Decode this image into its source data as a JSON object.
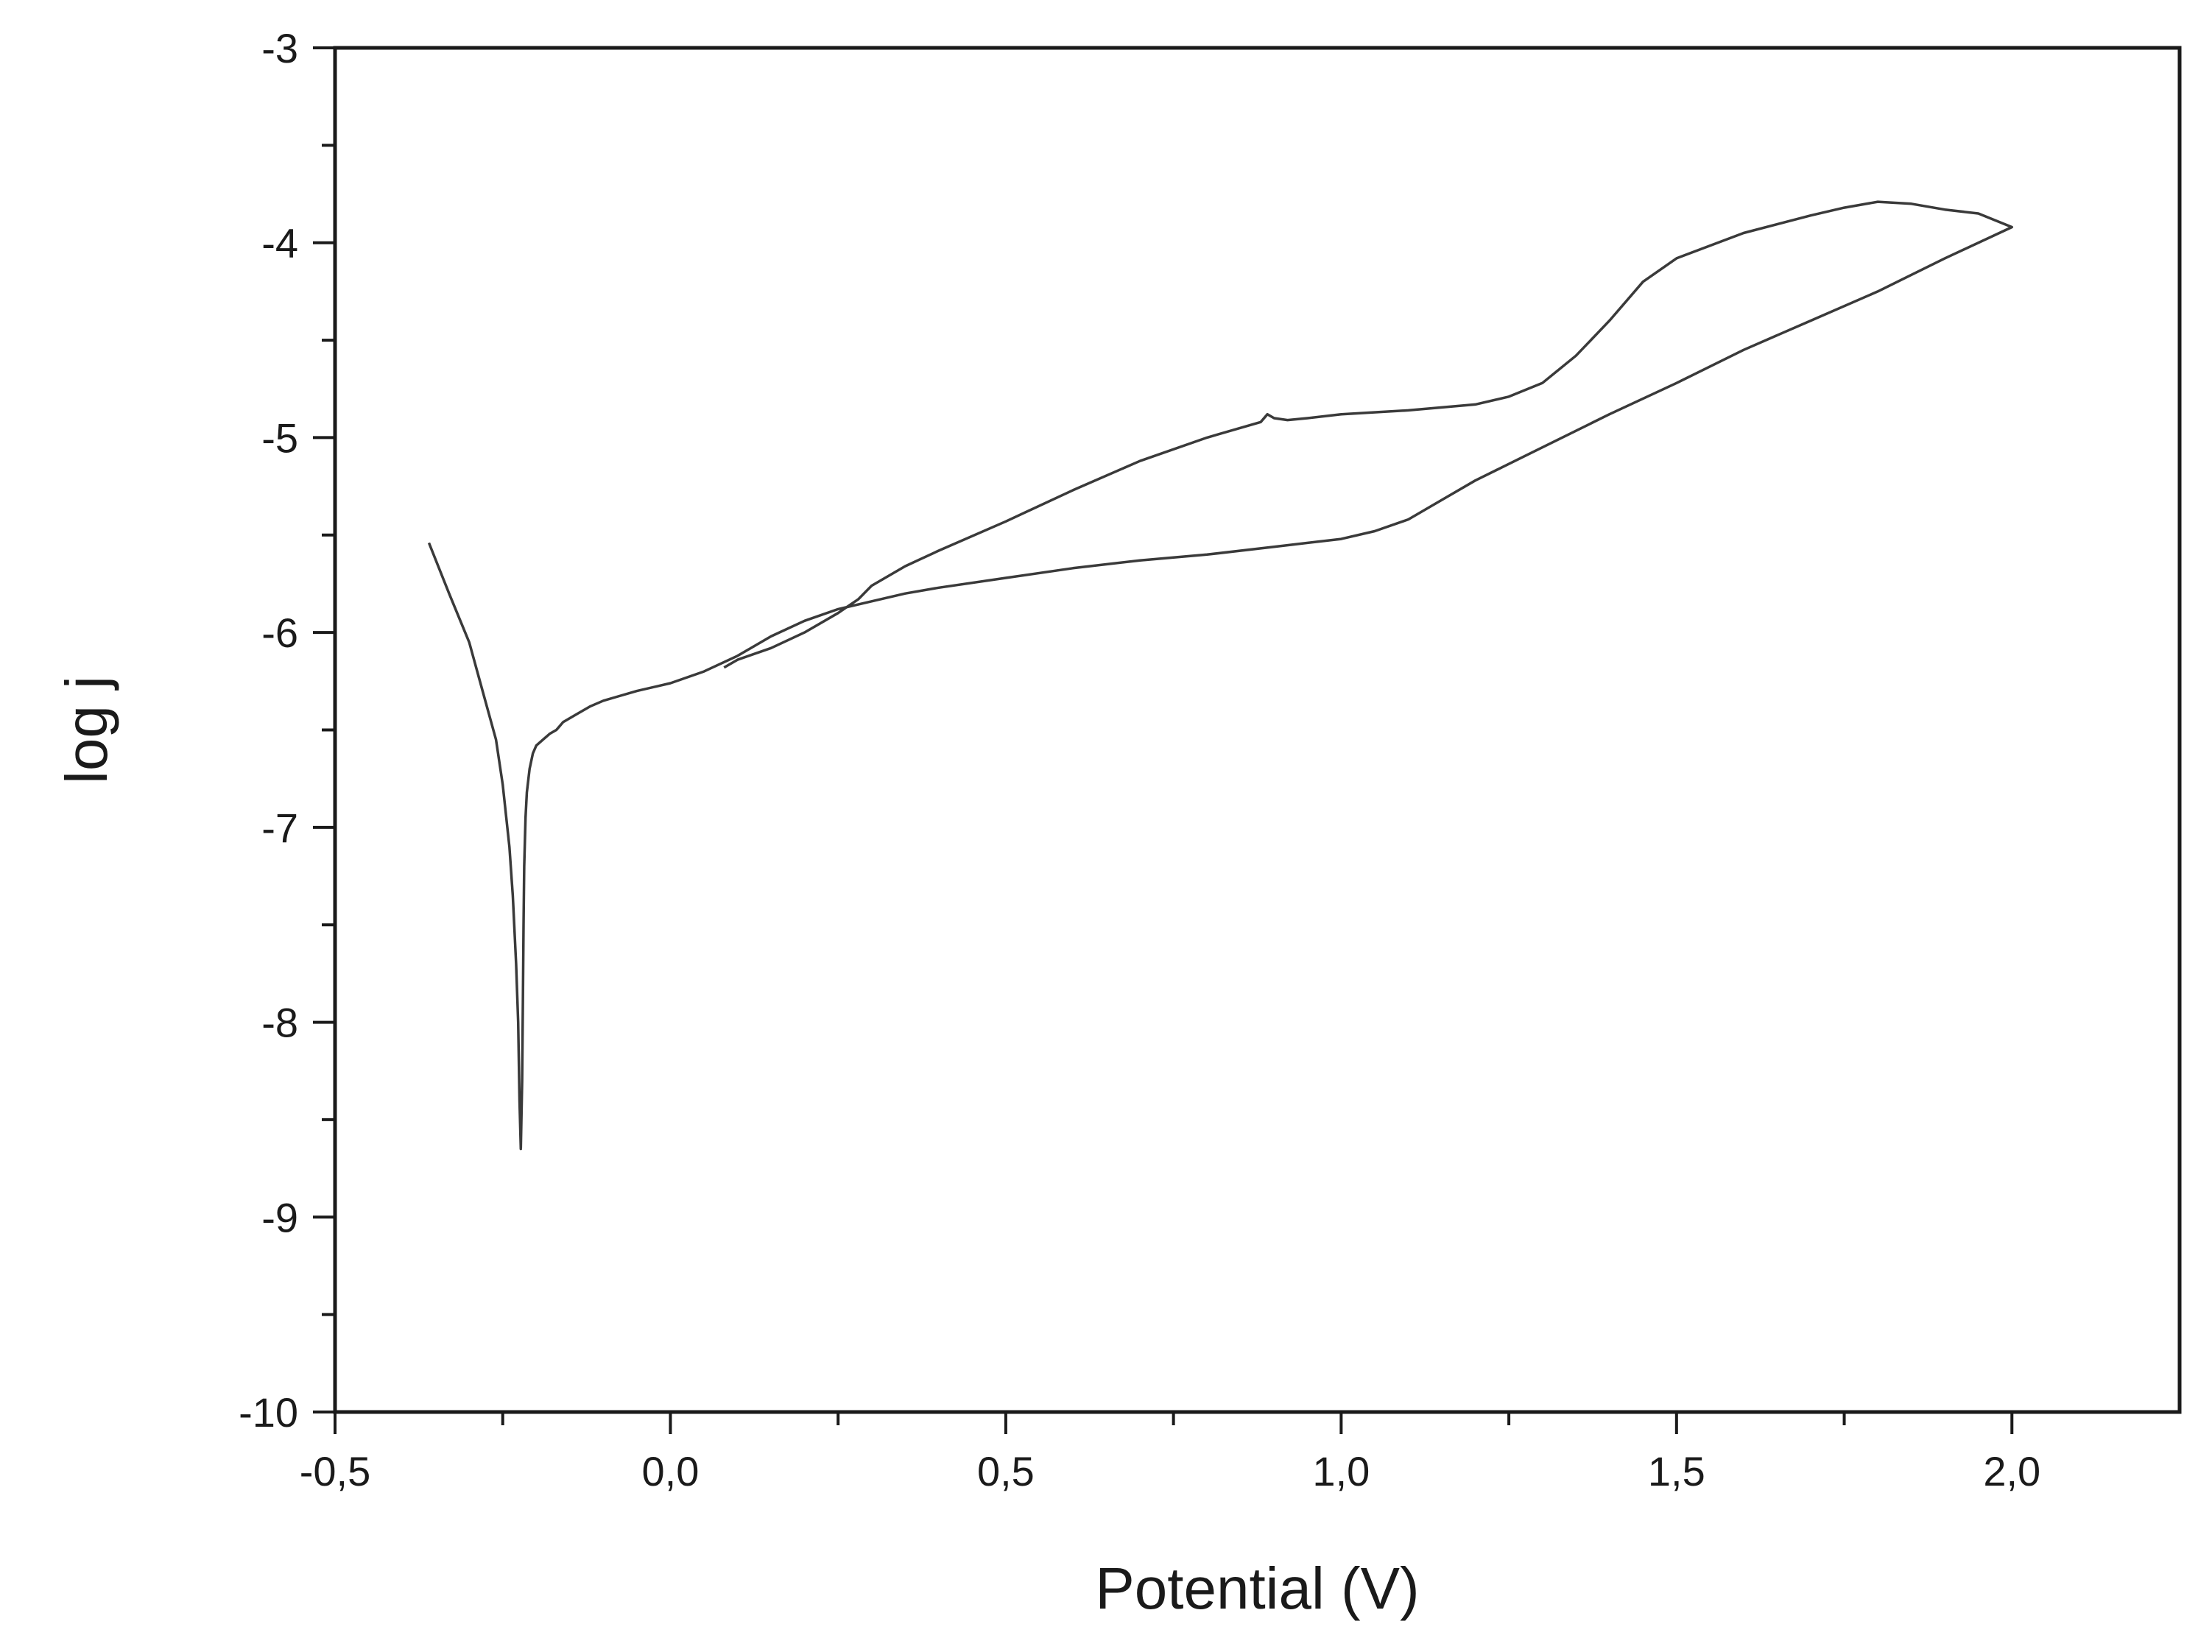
{
  "chart_data": {
    "type": "line",
    "title": "",
    "xlabel": "Potential (V)",
    "ylabel": "log j",
    "xlim": [
      -0.5,
      2.25
    ],
    "ylim": [
      -10,
      -3
    ],
    "grid": false,
    "legend": "none",
    "x_major_ticks": [
      -0.5,
      0.0,
      0.5,
      1.0,
      1.5,
      2.0
    ],
    "x_tick_labels": [
      "-0,5",
      "0,0",
      "0,5",
      "1,0",
      "1,5",
      "2,0"
    ],
    "x_minor_ticks": [
      -0.25,
      0.25,
      0.75,
      1.25,
      1.75
    ],
    "y_major_ticks": [
      -3,
      -4,
      -5,
      -6,
      -7,
      -8,
      -9,
      -10
    ],
    "y_tick_labels": [
      "-3",
      "-4",
      "-5",
      "-6",
      "-7",
      "-8",
      "-9",
      "-10"
    ],
    "y_minor_ticks": [
      -3.5,
      -4.5,
      -5.5,
      -6.5,
      -7.5,
      -8.5,
      -9.5
    ],
    "line_color": "#3a3a3a",
    "series": [
      {
        "x": [
          -0.36,
          -0.33,
          -0.3,
          -0.28,
          -0.26,
          -0.25,
          -0.24,
          -0.235,
          -0.23,
          -0.227,
          -0.225,
          -0.223,
          -0.221,
          -0.22,
          -0.219,
          -0.218,
          -0.216,
          -0.214,
          -0.21,
          -0.205,
          -0.2,
          -0.19,
          -0.18,
          -0.17,
          -0.16,
          -0.14,
          -0.12,
          -0.1,
          -0.08,
          -0.05,
          0.0,
          0.05,
          0.1,
          0.15,
          0.2,
          0.25,
          0.3,
          0.35,
          0.4,
          0.5,
          0.6,
          0.7,
          0.8,
          0.9,
          1.0,
          1.05,
          1.1,
          1.15,
          1.2,
          1.3,
          1.4,
          1.5,
          1.6,
          1.7,
          1.8,
          1.9,
          2.0,
          1.95,
          1.9,
          1.85,
          1.8,
          1.75,
          1.7,
          1.6,
          1.5,
          1.45,
          1.4,
          1.35,
          1.3,
          1.25,
          1.2,
          1.1,
          1.0,
          0.95,
          0.92,
          0.9,
          0.89,
          0.88,
          0.8,
          0.7,
          0.6,
          0.5,
          0.4,
          0.35,
          0.3,
          0.28,
          0.25,
          0.2,
          0.15,
          0.1,
          0.08
        ],
        "y": [
          -5.54,
          -5.8,
          -6.05,
          -6.3,
          -6.55,
          -6.78,
          -7.1,
          -7.35,
          -7.7,
          -8.0,
          -8.4,
          -8.65,
          -8.3,
          -7.9,
          -7.5,
          -7.2,
          -6.95,
          -6.82,
          -6.7,
          -6.62,
          -6.58,
          -6.55,
          -6.52,
          -6.5,
          -6.46,
          -6.42,
          -6.38,
          -6.35,
          -6.33,
          -6.3,
          -6.26,
          -6.2,
          -6.12,
          -6.02,
          -5.94,
          -5.88,
          -5.84,
          -5.8,
          -5.77,
          -5.72,
          -5.67,
          -5.63,
          -5.6,
          -5.56,
          -5.52,
          -5.48,
          -5.42,
          -5.32,
          -5.22,
          -5.05,
          -4.88,
          -4.72,
          -4.55,
          -4.4,
          -4.25,
          -4.08,
          -3.92,
          -3.85,
          -3.83,
          -3.8,
          -3.79,
          -3.82,
          -3.86,
          -3.95,
          -4.08,
          -4.2,
          -4.4,
          -4.58,
          -4.72,
          -4.79,
          -4.83,
          -4.86,
          -4.88,
          -4.9,
          -4.91,
          -4.9,
          -4.88,
          -4.92,
          -5.0,
          -5.12,
          -5.27,
          -5.43,
          -5.58,
          -5.66,
          -5.76,
          -5.83,
          -5.9,
          -6.0,
          -6.08,
          -6.14,
          -6.18
        ]
      }
    ]
  }
}
